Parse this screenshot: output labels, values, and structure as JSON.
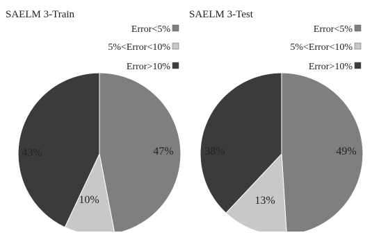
{
  "chart_data": [
    {
      "type": "pie",
      "title": "SAELM 3-Train",
      "legend_position": "top-right",
      "slices": [
        {
          "label": "Error<5%",
          "value": 47,
          "display": "47%",
          "color": "#7f7f7f"
        },
        {
          "label": "5%<Error<10%",
          "value": 10,
          "display": "10%",
          "color": "#c8c8c8"
        },
        {
          "label": "Error>10%",
          "value": 43,
          "display": "43%",
          "color": "#3b3b3b"
        }
      ]
    },
    {
      "type": "pie",
      "title": "SAELM 3-Test",
      "legend_position": "top-right",
      "slices": [
        {
          "label": "Error<5%",
          "value": 49,
          "display": "49%",
          "color": "#7f7f7f"
        },
        {
          "label": "5%<Error<10%",
          "value": 13,
          "display": "13%",
          "color": "#c8c8c8"
        },
        {
          "label": "Error>10%",
          "value": 38,
          "display": "38%",
          "color": "#3b3b3b"
        }
      ]
    }
  ]
}
